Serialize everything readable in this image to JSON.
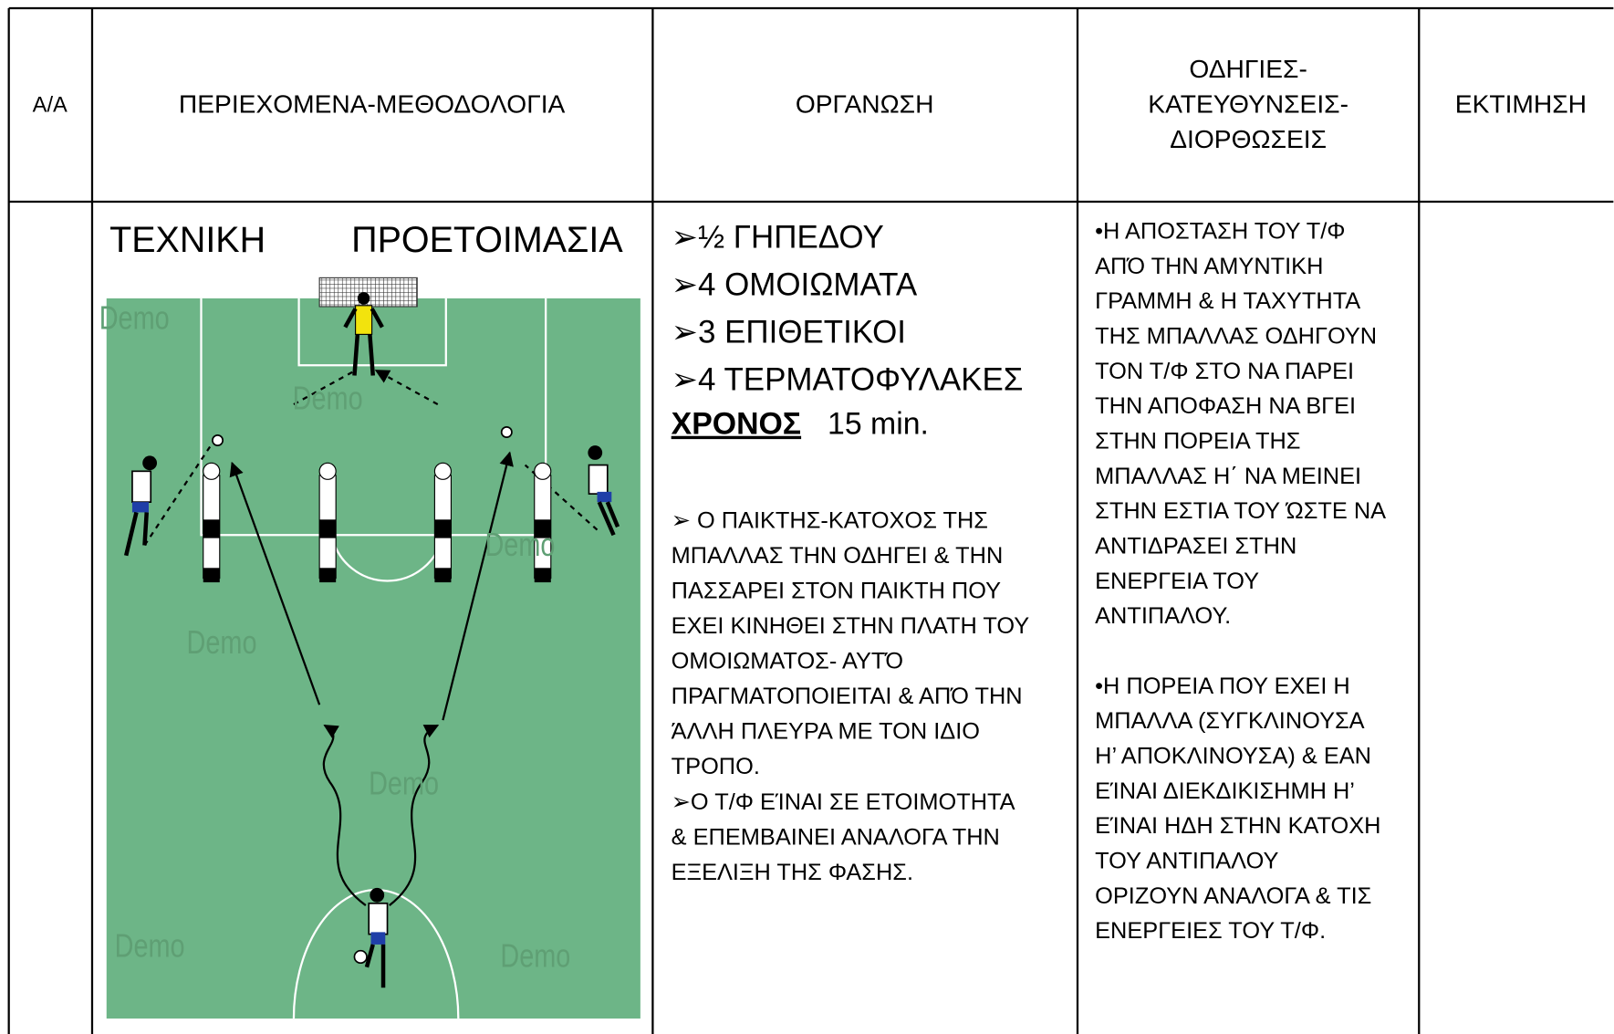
{
  "header": {
    "cells": [
      [
        "Α/Α"
      ],
      [
        "ΠΕΡΙΕΧΟΜΕΝΑ-ΜΕΘΟΔΟΛΟΓΙΑ"
      ],
      [
        "ΟΡΓΑΝΩΣΗ"
      ],
      [
        "ΟΔΗΓΙΕΣ-",
        "ΚΑΤΕΥΘΥΝΣΕΙΣ-",
        "ΔΙΟΡΘΩΣΕΙΣ"
      ],
      [
        "ΕΚΤΙΜΗΣΗ"
      ]
    ]
  },
  "body": {
    "title_words": [
      "ΤΕΧΝΙΚΗ",
      "ΠΡΟΕΤΟΙΜΑΣΙΑ"
    ],
    "watermark": "Demo",
    "organization": {
      "items": [
        "➢½  ΓΗΠΕΔΟΥ",
        "➢4  ΟΜΟΙΩΜΑΤΑ",
        "➢3  ΕΠΙΘΕΤΙΚΟΙ",
        "➢4  ΤΕΡΜΑΤΟΦΥΛΑΚΕΣ"
      ],
      "time_label": "ΧΡΟΝΟΣ",
      "time_value": "15 min.",
      "description": [
        "➢  Ο ΠΑΙΚΤΗΣ-ΚΑΤΟΧΟΣ ΤΗΣ",
        "ΜΠΑΛΛΑΣ ΤΗΝ ΟΔΗΓΕΙ & ΤΗΝ",
        "ΠΑΣΣΑΡΕΙ ΣΤΟΝ ΠΑΙΚΤΗ ΠΟΥ",
        "ΕΧΕΙ ΚΙΝΗΘΕΙ ΣΤΗΝ ΠΛΑΤΗ ΤΟΥ",
        "ΟΜΟΙΩΜΑΤΟΣ- ΑΥΤΌ",
        "ΠΡΑΓΜΑΤΟΠΟΙΕΙΤΑΙ & ΑΠΌ ΤΗΝ",
        "ΆΛΛΗ ΠΛΕΥΡΑ ΜΕ ΤΟΝ ΙΔΙΟ",
        "ΤΡΟΠΟ.",
        "➢Ο Τ/Φ  ΕΊΝΑΙ ΣΕ ΕΤΟΙΜΟΤΗΤΑ",
        "& ΕΠΕΜΒΑΙΝΕΙ ΑΝΑΛΟΓΑ ΤΗΝ",
        "ΕΞΕΛΙΞΗ ΤΗΣ ΦΑΣΗΣ."
      ]
    },
    "instructions": [
      [
        "•Η ΑΠΟΣΤΑΣΗ ΤΟΥ Τ/Φ",
        "ΑΠΌ ΤΗΝ ΑΜΥΝΤΙΚΗ",
        "ΓΡΑΜΜΗ & Η ΤΑΧΥΤΗΤΑ",
        "ΤΗΣ ΜΠΑΛΛΑΣ ΟΔΗΓΟΥΝ",
        "ΤΟΝ Τ/Φ ΣΤΟ ΝΑ ΠΑΡΕΙ",
        "ΤΗΝ ΑΠΟΦΑΣΗ ΝΑ ΒΓΕΙ",
        "ΣΤΗΝ ΠΟΡΕΙΑ ΤΗΣ",
        "ΜΠΑΛΛΑΣ Η΄ ΝΑ ΜΕΙΝΕΙ",
        "ΣΤΗΝ ΕΣΤΙΑ ΤΟΥ ΏΣΤΕ ΝΑ",
        "ΑΝΤΙΔΡΑΣΕΙ ΣΤΗΝ",
        "ΕΝΕΡΓΕΙΑ ΤΟΥ",
        "ΑΝΤΙΠΑΛΟΥ."
      ],
      [
        "•Η ΠΟΡΕΙΑ ΠΟΥ ΕΧΕΙ Η",
        "ΜΠΑΛΛΑ (ΣΥΓΚΛΙΝΟΥΣΑ",
        "Η’ ΑΠΟΚΛΙΝΟΥΣΑ) & ΕΑΝ",
        "ΕΊΝΑΙ ΔΙΕΚΔΙΚΙΣΗΜΗ Η’",
        "ΕΊΝΑΙ ΗΔΗ ΣΤΗΝ ΚΑΤΟΧΗ",
        "ΤΟΥ ΑΝΤΙΠΑΛΟΥ",
        "ΟΡΙΖΟΥΝ ΑΝΑΛΟΓΑ & ΤΙΣ",
        "ΕΝΕΡΓΕΙΕΣ ΤΟΥ Τ/Φ."
      ]
    ]
  }
}
